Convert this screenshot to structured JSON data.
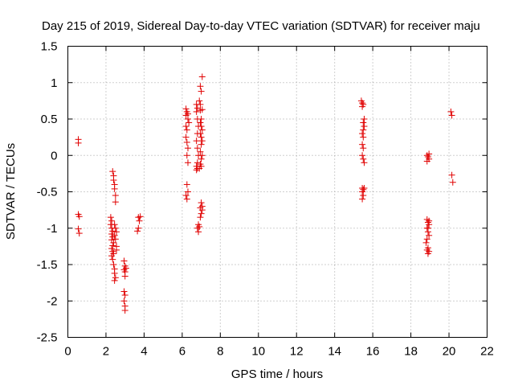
{
  "chart_data": {
    "type": "scatter",
    "title": "Day 215 of 2019, Sidereal Day-to-day VTEC variation (SDTVAR) for receiver maju",
    "xlabel": "GPS time / hours",
    "ylabel": "SDTVAR / TECUs",
    "xlim": [
      0,
      22
    ],
    "ylim": [
      -2.5,
      1.5
    ],
    "x_ticks": [
      0,
      2,
      4,
      6,
      8,
      10,
      12,
      14,
      16,
      18,
      20,
      22
    ],
    "y_ticks": [
      -2.5,
      -2,
      -1.5,
      -1,
      -0.5,
      0,
      0.5,
      1,
      1.5
    ],
    "x_tick_labels": [
      "0",
      "2",
      "4",
      "6",
      "8",
      "10",
      "12",
      "14",
      "16",
      "18",
      "20",
      "22"
    ],
    "y_tick_labels": [
      "-2.5",
      "-2",
      "-1.5",
      "-1",
      "-0.5",
      "0",
      "0.5",
      "1",
      "1.5"
    ],
    "grid": true,
    "marker": "+",
    "series": [
      {
        "name": "SDTVAR",
        "color": "#e00000",
        "points": [
          [
            0.55,
            0.22
          ],
          [
            0.55,
            0.17
          ],
          [
            0.55,
            -0.81
          ],
          [
            0.6,
            -0.84
          ],
          [
            0.55,
            -1.01
          ],
          [
            0.6,
            -1.07
          ],
          [
            2.35,
            -0.22
          ],
          [
            2.4,
            -0.28
          ],
          [
            2.4,
            -0.34
          ],
          [
            2.45,
            -0.4
          ],
          [
            2.45,
            -0.46
          ],
          [
            2.5,
            -0.55
          ],
          [
            2.5,
            -0.64
          ],
          [
            2.25,
            -0.85
          ],
          [
            2.3,
            -0.9
          ],
          [
            2.25,
            -0.95
          ],
          [
            2.3,
            -1.0
          ],
          [
            2.35,
            -1.04
          ],
          [
            2.3,
            -1.08
          ],
          [
            2.35,
            -1.12
          ],
          [
            2.3,
            -1.16
          ],
          [
            2.4,
            -1.2
          ],
          [
            2.35,
            -1.24
          ],
          [
            2.3,
            -1.28
          ],
          [
            2.35,
            -1.32
          ],
          [
            2.3,
            -1.38
          ],
          [
            2.35,
            -1.43
          ],
          [
            2.4,
            -1.5
          ],
          [
            2.45,
            -1.56
          ],
          [
            2.45,
            -1.62
          ],
          [
            2.5,
            -1.68
          ],
          [
            2.45,
            -1.72
          ],
          [
            2.5,
            -1.0
          ],
          [
            2.5,
            -1.15
          ],
          [
            2.55,
            -1.25
          ],
          [
            2.55,
            -1.05
          ],
          [
            2.45,
            -0.95
          ],
          [
            2.4,
            -1.35
          ],
          [
            2.45,
            -1.1
          ],
          [
            2.55,
            -1.3
          ],
          [
            2.95,
            -1.45
          ],
          [
            3.0,
            -1.52
          ],
          [
            2.95,
            -1.57
          ],
          [
            3.0,
            -1.6
          ],
          [
            3.05,
            -1.55
          ],
          [
            3.0,
            -1.66
          ],
          [
            2.95,
            -1.87
          ],
          [
            3.0,
            -1.92
          ],
          [
            2.95,
            -2.0
          ],
          [
            3.0,
            -2.07
          ],
          [
            3.0,
            -2.13
          ],
          [
            3.7,
            -0.85
          ],
          [
            3.75,
            -0.9
          ],
          [
            3.8,
            -0.84
          ],
          [
            3.7,
            -1.0
          ],
          [
            3.65,
            -1.04
          ],
          [
            6.2,
            0.64
          ],
          [
            6.25,
            0.6
          ],
          [
            6.2,
            0.55
          ],
          [
            6.3,
            0.5
          ],
          [
            6.2,
            0.4
          ],
          [
            6.25,
            0.35
          ],
          [
            6.2,
            0.25
          ],
          [
            6.25,
            0.18
          ],
          [
            6.3,
            0.1
          ],
          [
            6.25,
            0.0
          ],
          [
            6.3,
            -0.1
          ],
          [
            6.25,
            -0.4
          ],
          [
            6.3,
            -0.5
          ],
          [
            6.2,
            -0.55
          ],
          [
            6.25,
            -0.6
          ],
          [
            6.3,
            0.57
          ],
          [
            6.35,
            0.45
          ],
          [
            6.75,
            0.7
          ],
          [
            6.8,
            0.65
          ],
          [
            6.75,
            0.6
          ],
          [
            6.8,
            0.5
          ],
          [
            6.85,
            0.4
          ],
          [
            6.8,
            0.3
          ],
          [
            6.75,
            0.2
          ],
          [
            6.8,
            0.1
          ],
          [
            6.85,
            0.0
          ],
          [
            6.8,
            -0.1
          ],
          [
            6.75,
            -0.15
          ],
          [
            6.8,
            -0.18
          ],
          [
            6.75,
            -0.2
          ],
          [
            6.85,
            -0.95
          ],
          [
            6.8,
            -1.0
          ],
          [
            6.85,
            -1.05
          ],
          [
            6.9,
            -0.98
          ],
          [
            6.9,
            0.75
          ],
          [
            6.95,
            0.62
          ],
          [
            7.0,
            0.88
          ],
          [
            6.95,
            0.95
          ],
          [
            7.05,
            1.08
          ],
          [
            7.0,
            0.5
          ],
          [
            6.95,
            0.45
          ],
          [
            7.0,
            0.4
          ],
          [
            7.05,
            0.35
          ],
          [
            6.95,
            0.3
          ],
          [
            7.0,
            0.25
          ],
          [
            7.05,
            0.2
          ],
          [
            7.0,
            0.15
          ],
          [
            6.95,
            0.05
          ],
          [
            7.05,
            0.0
          ],
          [
            7.0,
            -0.05
          ],
          [
            6.95,
            -0.12
          ],
          [
            7.0,
            -0.15
          ],
          [
            7.05,
            0.63
          ],
          [
            6.95,
            0.7
          ],
          [
            7.0,
            -0.65
          ],
          [
            6.95,
            -0.72
          ],
          [
            7.05,
            -0.75
          ],
          [
            7.0,
            -0.8
          ],
          [
            6.95,
            -0.85
          ],
          [
            7.05,
            -0.7
          ],
          [
            6.9,
            -0.18
          ],
          [
            15.4,
            0.75
          ],
          [
            15.45,
            0.72
          ],
          [
            15.5,
            0.7
          ],
          [
            15.45,
            0.67
          ],
          [
            15.55,
            0.5
          ],
          [
            15.5,
            0.45
          ],
          [
            15.55,
            0.4
          ],
          [
            15.5,
            0.35
          ],
          [
            15.45,
            0.3
          ],
          [
            15.5,
            0.25
          ],
          [
            15.45,
            0.15
          ],
          [
            15.5,
            0.1
          ],
          [
            15.45,
            0.0
          ],
          [
            15.5,
            -0.05
          ],
          [
            15.55,
            -0.1
          ],
          [
            15.45,
            -0.45
          ],
          [
            15.5,
            -0.47
          ],
          [
            15.55,
            -0.45
          ],
          [
            15.45,
            -0.5
          ],
          [
            15.5,
            -0.55
          ],
          [
            15.45,
            -0.6
          ],
          [
            18.85,
            0.0
          ],
          [
            18.9,
            -0.02
          ],
          [
            18.95,
            -0.05
          ],
          [
            18.85,
            -0.08
          ],
          [
            18.95,
            0.02
          ],
          [
            18.85,
            -0.88
          ],
          [
            18.9,
            -0.92
          ],
          [
            18.95,
            -0.95
          ],
          [
            18.85,
            -1.0
          ],
          [
            18.9,
            -1.05
          ],
          [
            18.95,
            -1.1
          ],
          [
            18.85,
            -1.15
          ],
          [
            18.8,
            -1.2
          ],
          [
            18.9,
            -1.27
          ],
          [
            18.85,
            -1.3
          ],
          [
            18.95,
            -1.32
          ],
          [
            18.9,
            -1.35
          ],
          [
            18.95,
            -0.9
          ],
          [
            18.9,
            -1.0
          ],
          [
            20.1,
            0.6
          ],
          [
            20.15,
            0.55
          ],
          [
            20.15,
            -0.27
          ],
          [
            20.2,
            -0.37
          ]
        ]
      }
    ]
  }
}
